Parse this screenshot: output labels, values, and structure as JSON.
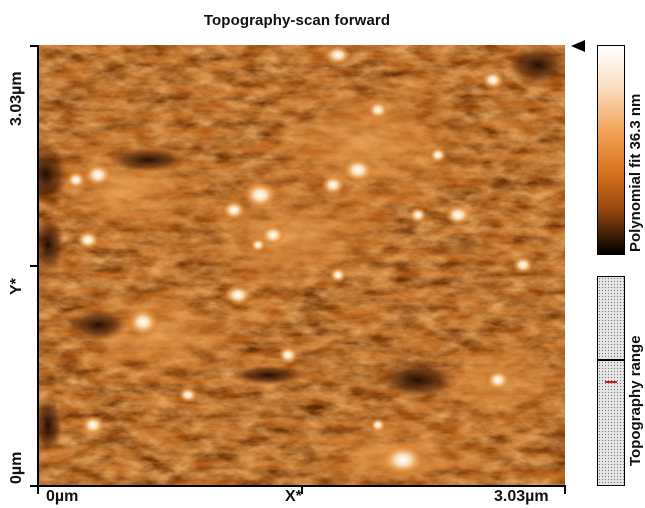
{
  "title": "Topography-scan forward",
  "axes": {
    "x_start": "0µm",
    "x_label": "X*",
    "x_end": "3.03µm",
    "y_start": "0µm",
    "y_label": "Y*",
    "y_end": "3.03µm"
  },
  "colorbar": {
    "label": "Polynomial fit 36.3 nm",
    "colors": [
      "#000000",
      "#3a1a05",
      "#9a4a10",
      "#d9741f",
      "#f3a55c",
      "#fbe3c8",
      "#ffffff"
    ]
  },
  "range": {
    "label": "Topography range",
    "marker_color": "#d01818"
  },
  "image": {
    "description_color": "#b45a12"
  }
}
